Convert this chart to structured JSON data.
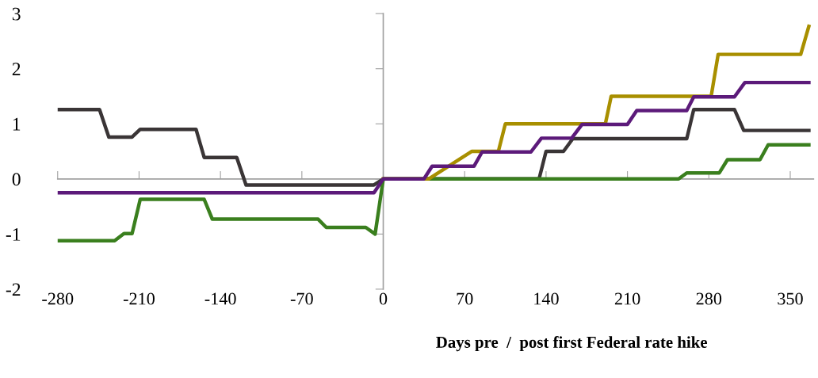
{
  "chart_data": {
    "type": "line",
    "xlabel": "Days pre  /  post first Federal rate hike",
    "xlim": [
      -280,
      370
    ],
    "xticks": [
      -280,
      -210,
      -140,
      -70,
      0,
      70,
      140,
      210,
      280,
      350
    ],
    "ylim": [
      -2,
      3
    ],
    "yticks": [
      -2,
      -1,
      0,
      1,
      2,
      3
    ],
    "marker": "none",
    "line_style": "solid",
    "series": [
      {
        "color": "#3a3536",
        "x": [
          -280,
          -244,
          -236,
          -216,
          -209,
          -161,
          -154,
          -126,
          -118,
          -8,
          0,
          134,
          140,
          155,
          163,
          261,
          267,
          302,
          310,
          366
        ],
        "values": [
          1.26,
          1.26,
          0.76,
          0.76,
          0.9,
          0.9,
          0.39,
          0.39,
          -0.11,
          -0.11,
          0,
          0,
          0.5,
          0.5,
          0.73,
          0.73,
          1.26,
          1.26,
          0.88,
          0.88
        ]
      },
      {
        "color": "#3a7f1e",
        "x": [
          -280,
          -231,
          -223,
          -216,
          -209,
          -154,
          -147,
          -56,
          -49,
          -15,
          -7,
          0,
          254,
          261,
          289,
          296,
          324,
          331,
          366
        ],
        "values": [
          -1.12,
          -1.12,
          -0.99,
          -0.99,
          -0.37,
          -0.37,
          -0.73,
          -0.73,
          -0.88,
          -0.88,
          -1.0,
          0,
          0,
          0.11,
          0.11,
          0.35,
          0.35,
          0.62,
          0.62
        ]
      },
      {
        "color": "#a88f00",
        "x": [
          0,
          39,
          76,
          99,
          105,
          191,
          196,
          282,
          288,
          359,
          366
        ],
        "values": [
          0,
          0,
          0.5,
          0.5,
          1.0,
          1.0,
          1.5,
          1.5,
          2.26,
          2.26,
          2.77
        ]
      },
      {
        "color": "#5c1a7a",
        "x": [
          -280,
          -8,
          0,
          35,
          42,
          78,
          85,
          127,
          136,
          162,
          171,
          210,
          218,
          261,
          267,
          302,
          311,
          366
        ],
        "values": [
          -0.25,
          -0.25,
          0,
          0,
          0.23,
          0.23,
          0.49,
          0.49,
          0.74,
          0.74,
          0.99,
          0.99,
          1.24,
          1.24,
          1.49,
          1.49,
          1.75,
          1.75
        ]
      }
    ]
  }
}
